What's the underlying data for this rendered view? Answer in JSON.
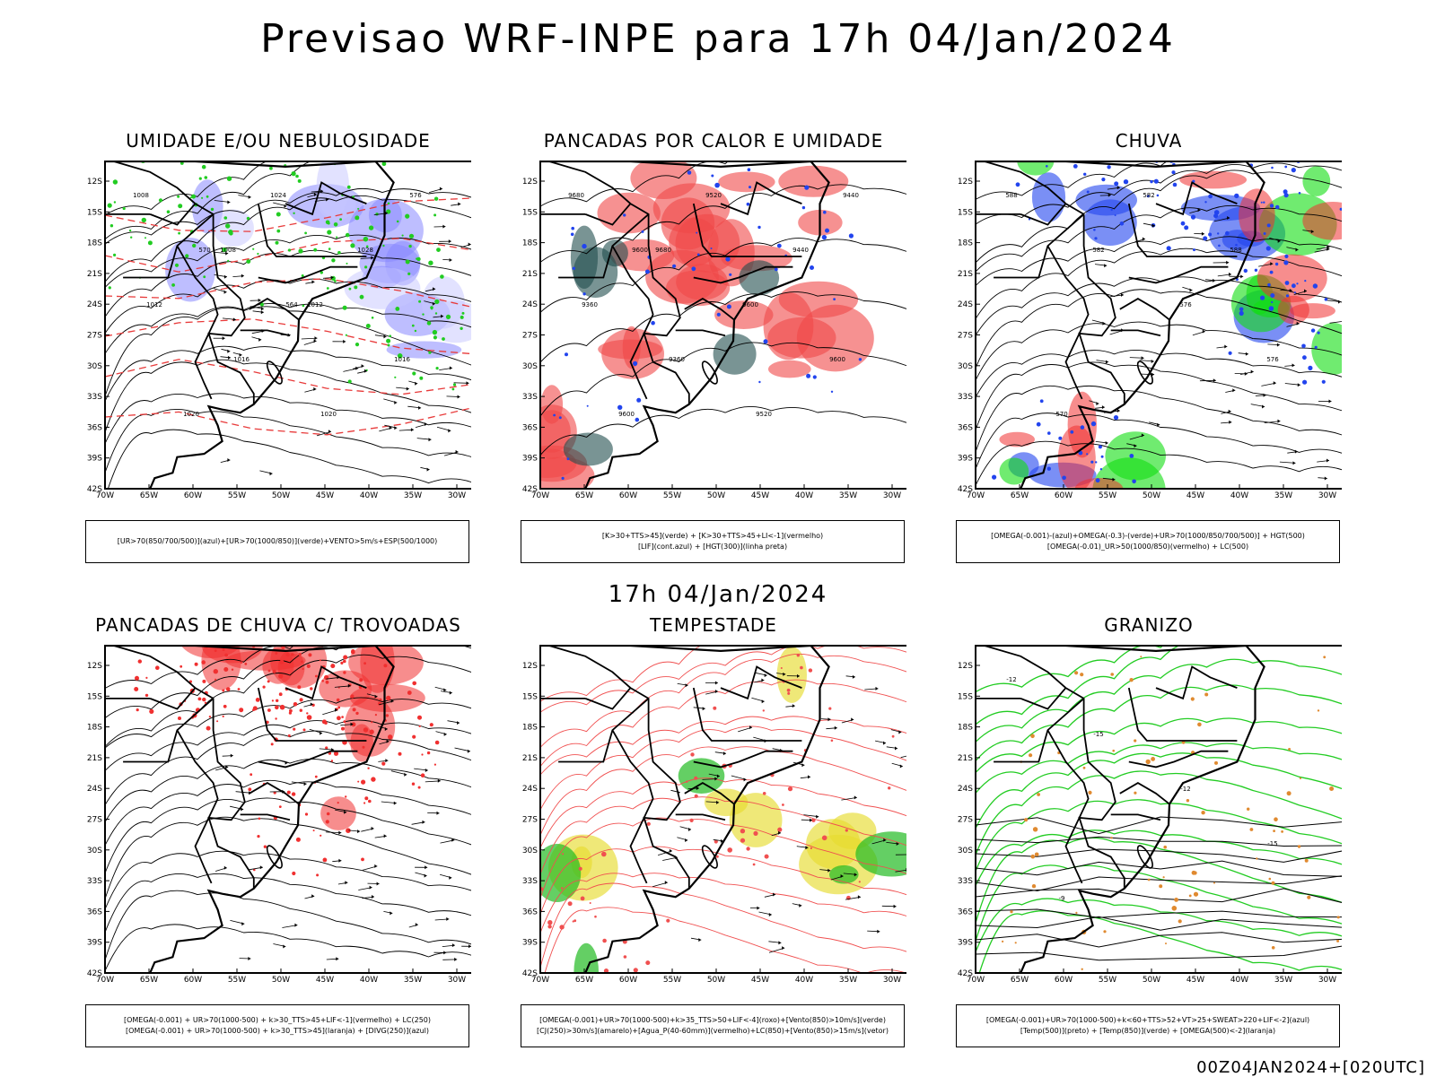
{
  "header": {
    "title": "Previsao WRF-INPE  para 17h 04/Jan/2024",
    "mid_date": "17h 04/Jan/2024",
    "footer": "00Z04JAN2024+[020UTC]"
  },
  "axes": {
    "lat_labels": [
      "12S",
      "15S",
      "18S",
      "21S",
      "24S",
      "27S",
      "30S",
      "33S",
      "36S",
      "39S",
      "42S"
    ],
    "lon_labels": [
      "70W",
      "65W",
      "60W",
      "55W",
      "50W",
      "45W",
      "40W",
      "35W",
      "30W"
    ]
  },
  "panels": [
    {
      "id": "umidade",
      "title": "UMIDADE E/OU NEBULOSIDADE",
      "legend": [
        "[UR>70(850/700/500)](azul)+[UR>70(1000/850)](verde)+VENTO>5m/s+ESP(500/1000)"
      ],
      "contour_labels": [
        "1008",
        "1008",
        "1012",
        "1016",
        "1020",
        "1024",
        "1028",
        "1012",
        "1016",
        "1020",
        "576",
        "570",
        "564"
      ],
      "colors": {
        "primary": "#7b7bff",
        "secondary": "#22cc22",
        "accent": "#e83a3a"
      }
    },
    {
      "id": "pancadas-calor",
      "title": "PANCADAS POR CALOR E UMIDADE",
      "legend": [
        "[K>30+TTS>45](verde) + [K>30+TTS>45+LI<-1](vermelho)",
        "[LIF](cont.azul) + [HGT(300)](linha preta)"
      ],
      "contour_labels": [
        "9680",
        "9680",
        "9600",
        "9600",
        "9600",
        "9520",
        "9440",
        "9360",
        "9360",
        "9520",
        "9440",
        "9600"
      ],
      "colors": {
        "primary": "#f04848",
        "secondary": "#1f4d4d",
        "accent": "#2244ee"
      }
    },
    {
      "id": "chuva",
      "title": "CHUVA",
      "legend": [
        "[OMEGA(-0.001)-(azul)+OMEGA(-0.3)-(verde)+UR>70(1000/850/700/500)] + HGT(500)",
        "[OMEGA(-0.01)_UR>50(1000/850)(vermelho) + LC(500)"
      ],
      "contour_labels": [
        "588",
        "582",
        "576",
        "576",
        "570",
        "582",
        "588"
      ],
      "colors": {
        "primary": "#2244ee",
        "secondary": "#11dd11",
        "accent": "#f03030"
      }
    },
    {
      "id": "pancadas-trovoadas",
      "title": "PANCADAS DE CHUVA C/ TROVOADAS",
      "legend": [
        "[OMEGA(-0.001) + UR>70(1000-500) + k>30_TTS>45+LIF<-1](vermelho) + LC(250)",
        "[OMEGA(-0.001) + UR>70(1000-500) + k>30_TTS>45](laranja) + [DIVG(250)](azul)"
      ],
      "contour_labels": [],
      "colors": {
        "primary": "#f03030",
        "secondary": "#2244ee",
        "accent": "#f08a20"
      }
    },
    {
      "id": "tempestade",
      "title": "TEMPESTADE",
      "legend": [
        "[OMEGA(-0.001)+UR>70(1000-500)+k>35_TTS>50+LIF<-4](roxo)+[Vento(850)>10m/s](verde)",
        "[CJ(250)>30m/s](amarelo)+[Agua_P(40-60mm)](vermelho)+LC(850)+[Vento(850)>15m/s](vetor)"
      ],
      "contour_labels": [],
      "colors": {
        "primary": "#f05050",
        "secondary": "#22bb22",
        "accent": "#e6dc30"
      }
    },
    {
      "id": "granizo",
      "title": "GRANIZO",
      "legend": [
        "[OMEGA(-0.001)+UR>70(1000-500)+k<60+TTS>52+VT>25+SWEAT>220+LIF<-2](azul)",
        "[Temp(500)](preto) + [Temp(850)](verde) + [OMEGA(500)<-2](laranja)"
      ],
      "contour_labels": [
        "-12",
        "-15",
        "-12",
        "-15",
        "-9"
      ],
      "colors": {
        "primary": "#22cc22",
        "secondary": "#e08a30",
        "accent": "#000000"
      }
    }
  ]
}
